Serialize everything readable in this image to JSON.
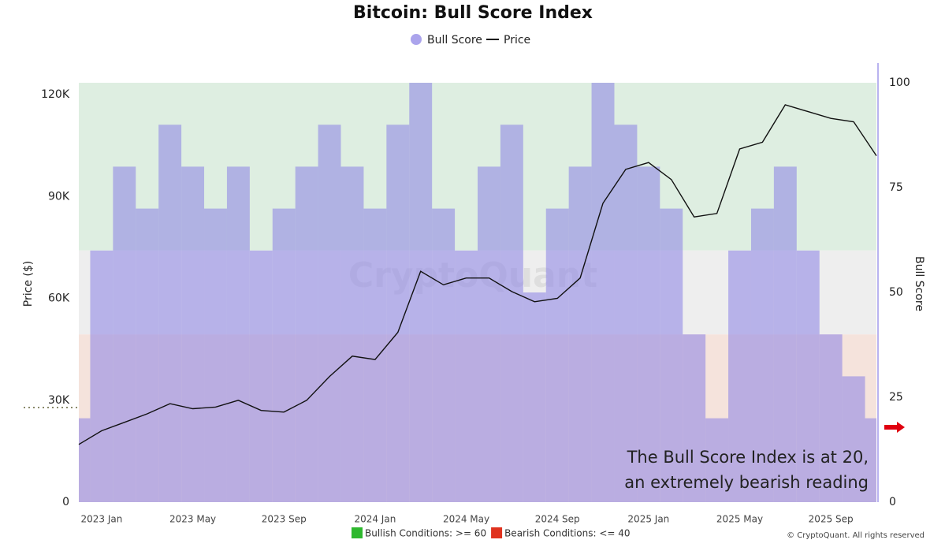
{
  "chart_data": {
    "type": "combo",
    "title": "Bitcoin: Bull Score Index",
    "ylabel": "Price ($)",
    "y2label": "Bull Score",
    "watermark": "CryptoQuant",
    "copyright": "© CryptoQuant. All rights reserved",
    "annotation": [
      "The Bull Score Index is at 20,",
      "an extremely bearish reading"
    ],
    "x": [
      "2022-12",
      "2023-01",
      "2023-02",
      "2023-03",
      "2023-04",
      "2023-05",
      "2023-06",
      "2023-07",
      "2023-08",
      "2023-09",
      "2023-10",
      "2023-11",
      "2023-12",
      "2024-01",
      "2024-02",
      "2024-03",
      "2024-04",
      "2024-05",
      "2024-06",
      "2024-07",
      "2024-08",
      "2024-09",
      "2024-10",
      "2024-11",
      "2024-12",
      "2025-01",
      "2025-02",
      "2025-03",
      "2025-04",
      "2025-05",
      "2025-06",
      "2025-07",
      "2025-08",
      "2025-09",
      "2025-10",
      "2025-11"
    ],
    "series": [
      {
        "name": "Bull Score",
        "type": "bar",
        "axis": "y2",
        "color": "#8f86e6",
        "values": [
          20,
          60,
          80,
          70,
          90,
          80,
          70,
          80,
          60,
          70,
          80,
          90,
          80,
          70,
          90,
          100,
          70,
          60,
          80,
          90,
          50,
          70,
          80,
          100,
          90,
          80,
          70,
          40,
          20,
          60,
          70,
          80,
          60,
          40,
          30,
          20
        ]
      },
      {
        "name": "Price",
        "type": "line",
        "axis": "y",
        "color": "#111111",
        "values": [
          17000,
          21000,
          23500,
          26000,
          29000,
          27500,
          28000,
          30000,
          27000,
          26500,
          30000,
          37000,
          43000,
          42000,
          50000,
          68000,
          64000,
          66000,
          66000,
          62000,
          59000,
          60000,
          66000,
          88000,
          98000,
          100000,
          95000,
          84000,
          85000,
          104000,
          106000,
          117000,
          115000,
          113000,
          112000,
          102000
        ]
      }
    ],
    "xticks": [
      {
        "value": "2023-01",
        "label": "2023 Jan"
      },
      {
        "value": "2023-05",
        "label": "2023 May"
      },
      {
        "value": "2023-09",
        "label": "2023 Sep"
      },
      {
        "value": "2024-01",
        "label": "2024 Jan"
      },
      {
        "value": "2024-05",
        "label": "2024 May"
      },
      {
        "value": "2024-09",
        "label": "2024 Sep"
      },
      {
        "value": "2025-01",
        "label": "2025 Jan"
      },
      {
        "value": "2025-05",
        "label": "2025 May"
      },
      {
        "value": "2025-09",
        "label": "2025 Sep"
      }
    ],
    "ylim": [
      0,
      123500
    ],
    "yticks": [
      0,
      {
        "value": 30000,
        "label": "30K"
      },
      {
        "value": 60000,
        "label": "60K"
      },
      {
        "value": 90000,
        "label": "90K"
      },
      {
        "value": 120000,
        "label": "120K"
      }
    ],
    "y2lim": [
      0,
      100
    ],
    "y2ticks": [
      0,
      25,
      50,
      75,
      100
    ],
    "bands": [
      {
        "from": 60,
        "to": 100,
        "color": "#deeee1",
        "legend_color": "#2eb82e",
        "label": "Bullish Conditions: >= 60"
      },
      {
        "from": 40,
        "to": 60,
        "color": "#eeeeee"
      },
      {
        "from": 0,
        "to": 40,
        "color": "#f5e3dc",
        "legend_color": "#e0321e",
        "label": "Bearish Conditions: <= 40"
      }
    ]
  }
}
